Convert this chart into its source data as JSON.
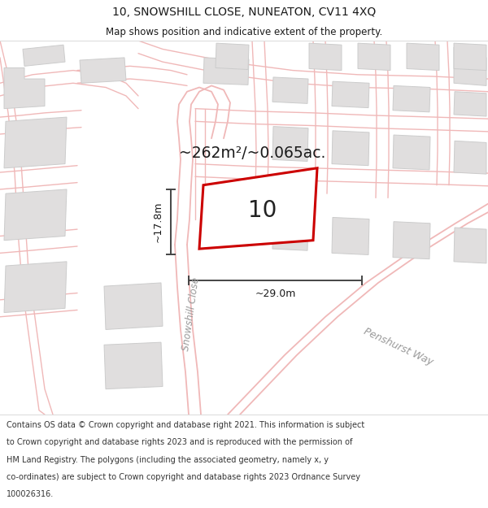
{
  "title_line1": "10, SNOWSHILL CLOSE, NUNEATON, CV11 4XQ",
  "title_line2": "Map shows position and indicative extent of the property.",
  "area_label": "~262m²/~0.065ac.",
  "dim_height": "~17.8m",
  "dim_width": "~29.0m",
  "property_label": "10",
  "street_label1": "Snowshill Close",
  "street_label2": "Penshurst Way",
  "footer_text": "Contains OS data © Crown copyright and database right 2021. This information is subject to Crown copyright and database rights 2023 and is reproduced with the permission of HM Land Registry. The polygons (including the associated geometry, namely x, y co-ordinates) are subject to Crown copyright and database rights 2023 Ordnance Survey 100026316.",
  "background_color": "#ffffff",
  "map_bg_color": "#faf8f8",
  "road_color": "#f0b8b8",
  "building_color": "#e0dede",
  "building_outline": "#cccccc",
  "property_fill": "#ffffff",
  "property_outline": "#cc0000",
  "dim_color": "#444444",
  "title_color": "#1a1a1a",
  "footer_color": "#333333",
  "street_color": "#999999"
}
